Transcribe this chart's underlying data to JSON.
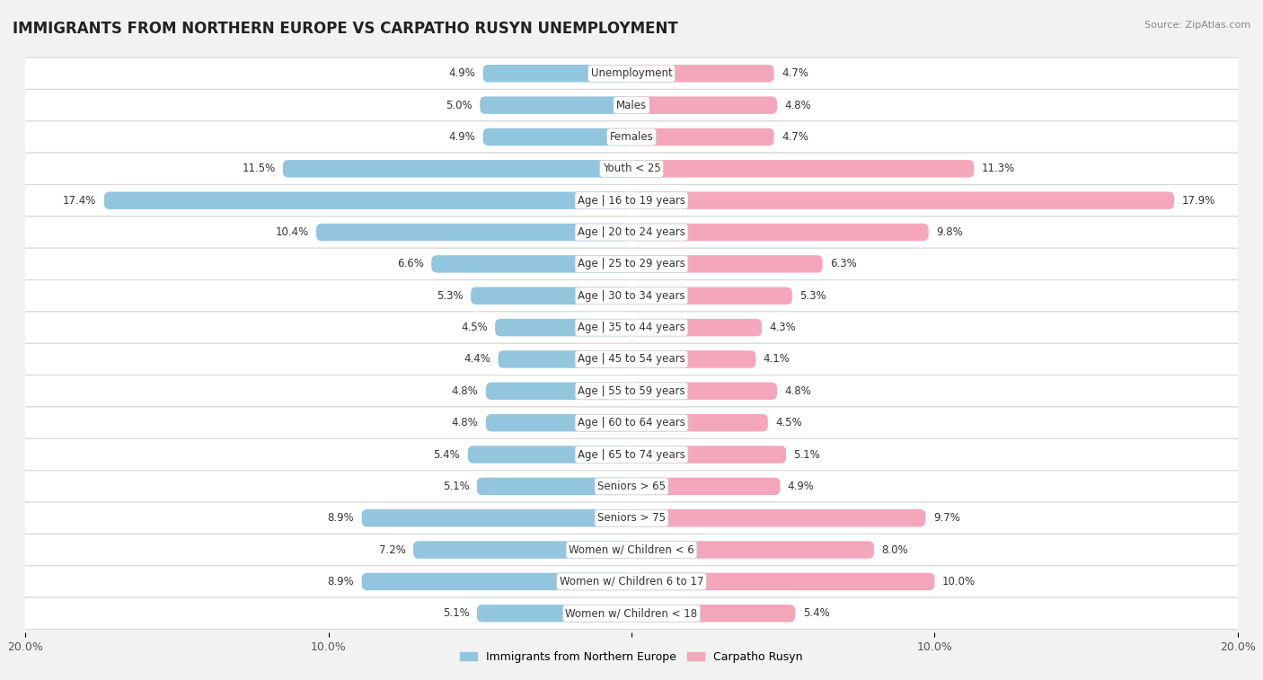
{
  "title": "IMMIGRANTS FROM NORTHERN EUROPE VS CARPATHO RUSYN UNEMPLOYMENT",
  "source": "Source: ZipAtlas.com",
  "categories": [
    "Unemployment",
    "Males",
    "Females",
    "Youth < 25",
    "Age | 16 to 19 years",
    "Age | 20 to 24 years",
    "Age | 25 to 29 years",
    "Age | 30 to 34 years",
    "Age | 35 to 44 years",
    "Age | 45 to 54 years",
    "Age | 55 to 59 years",
    "Age | 60 to 64 years",
    "Age | 65 to 74 years",
    "Seniors > 65",
    "Seniors > 75",
    "Women w/ Children < 6",
    "Women w/ Children 6 to 17",
    "Women w/ Children < 18"
  ],
  "left_values": [
    4.9,
    5.0,
    4.9,
    11.5,
    17.4,
    10.4,
    6.6,
    5.3,
    4.5,
    4.4,
    4.8,
    4.8,
    5.4,
    5.1,
    8.9,
    7.2,
    8.9,
    5.1
  ],
  "right_values": [
    4.7,
    4.8,
    4.7,
    11.3,
    17.9,
    9.8,
    6.3,
    5.3,
    4.3,
    4.1,
    4.8,
    4.5,
    5.1,
    4.9,
    9.7,
    8.0,
    10.0,
    5.4
  ],
  "left_color": "#92c5de",
  "right_color": "#f4a6bb",
  "background_color": "#f2f2f2",
  "row_bg_color": "#ffffff",
  "row_border_color": "#d8d8d8",
  "max_val": 20.0,
  "label_left": "Immigrants from Northern Europe",
  "label_right": "Carpatho Rusyn",
  "title_fontsize": 12,
  "value_fontsize": 8.5,
  "cat_fontsize": 8.5
}
